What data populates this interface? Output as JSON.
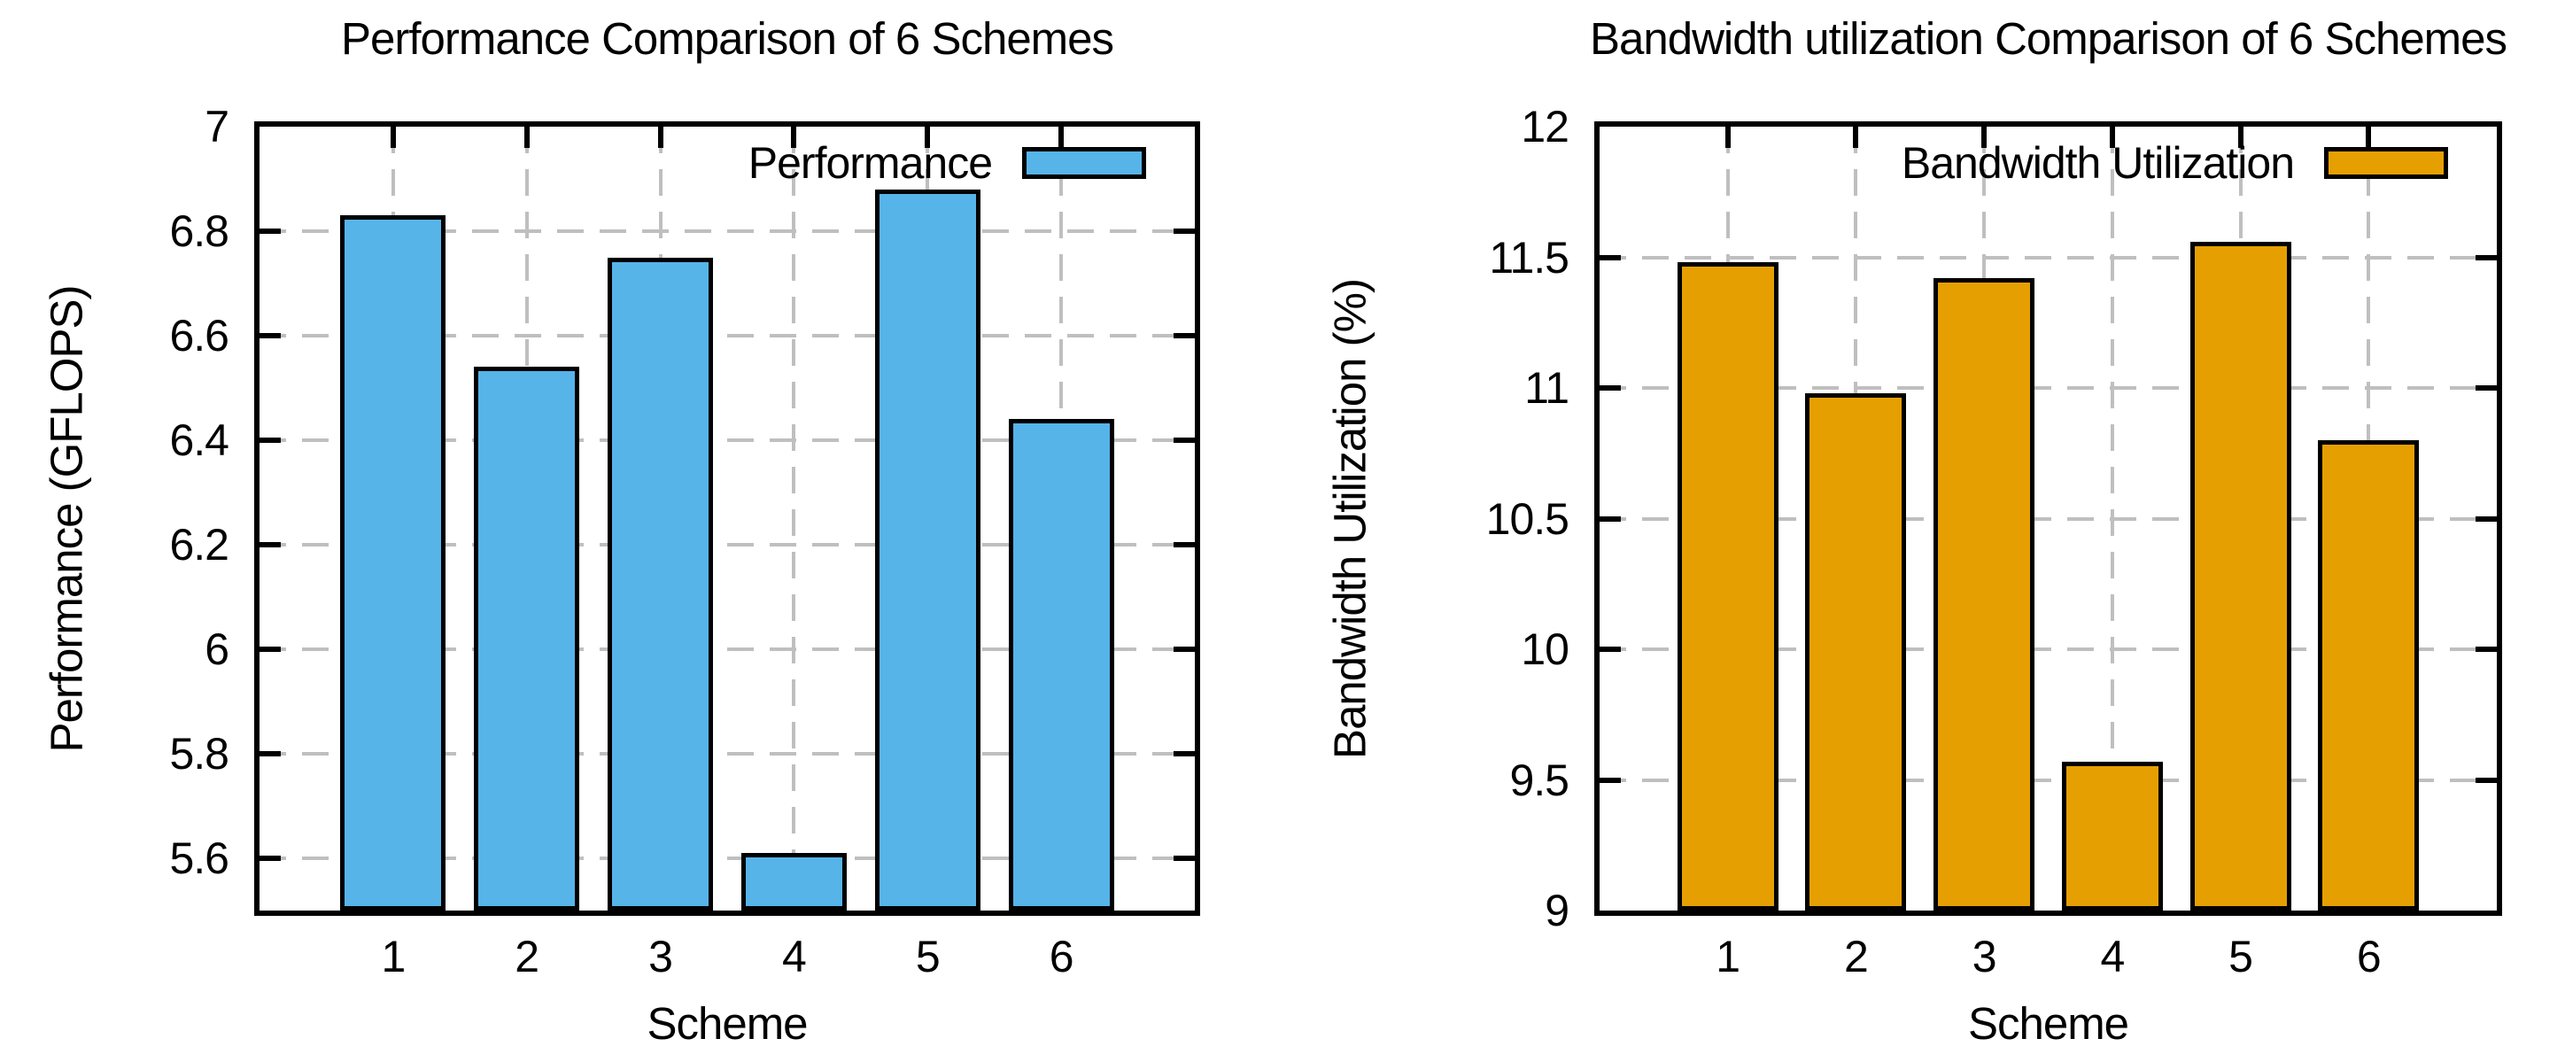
{
  "page": {
    "background": "#ffffff"
  },
  "style": {
    "grid_color": "#bfbfbf",
    "axis_color": "#000000",
    "text_color": "#000000"
  },
  "chart_data": [
    {
      "type": "bar",
      "title": "Performance Comparison of 6 Schemes",
      "xlabel": "Scheme",
      "ylabel": "Performance (GFLOPS)",
      "legend": {
        "label": "Performance",
        "position": "top-right-inside"
      },
      "categories": [
        "1",
        "2",
        "3",
        "4",
        "5",
        "6"
      ],
      "values": [
        6.83,
        6.54,
        6.75,
        5.61,
        6.88,
        6.44
      ],
      "bar_color": "#56B4E9",
      "bar_border_color": "#000000",
      "xlim": [
        0,
        7
      ],
      "ylim": [
        5.5,
        7.0
      ],
      "yticks": [
        5.6,
        5.8,
        6.0,
        6.2,
        6.4,
        6.6,
        6.8,
        7.0
      ],
      "ytick_labels": [
        "5.6",
        "5.8",
        "6",
        "6.2",
        "6.4",
        "6.6",
        "6.8",
        "7"
      ],
      "grid": true
    },
    {
      "type": "bar",
      "title": "Bandwidth utilization Comparison of 6 Schemes",
      "xlabel": "Scheme",
      "ylabel": "Bandwidth Utilization (%)",
      "legend": {
        "label": "Bandwidth Utilization",
        "position": "top-right-inside"
      },
      "categories": [
        "1",
        "2",
        "3",
        "4",
        "5",
        "6"
      ],
      "values": [
        11.48,
        10.98,
        11.42,
        9.57,
        11.56,
        10.8
      ],
      "bar_color": "#E69F00",
      "bar_border_color": "#000000",
      "xlim": [
        0,
        7
      ],
      "ylim": [
        9.0,
        12.0
      ],
      "yticks": [
        9.0,
        9.5,
        10.0,
        10.5,
        11.0,
        11.5,
        12.0
      ],
      "ytick_labels": [
        "9",
        "9.5",
        "10",
        "10.5",
        "11",
        "11.5",
        "12"
      ],
      "grid": true
    }
  ]
}
